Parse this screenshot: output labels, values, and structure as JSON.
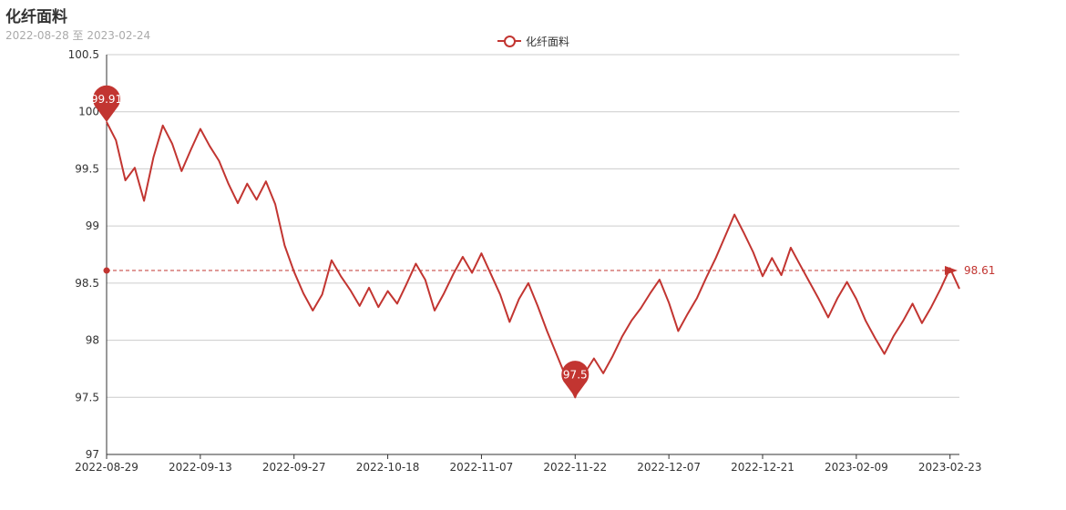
{
  "header": {
    "title": "化纤面料",
    "subtitle": "2022-08-28 至 2023-02-24"
  },
  "colors": {
    "series": "#c23531",
    "grid": "#cccccc",
    "axis": "#333333",
    "subtitle": "#aaaaaa"
  },
  "chart_data": {
    "type": "line",
    "title": "化纤面料",
    "subtitle": "2022-08-28 至 2023-02-24",
    "legend": {
      "position": "top-center",
      "items": [
        "化纤面料"
      ]
    },
    "ylim": [
      97,
      100.5
    ],
    "y_ticks": [
      97,
      97.5,
      98,
      98.5,
      99,
      99.5,
      100,
      100.5
    ],
    "y_tick_labels": [
      "97",
      "97.5",
      "98",
      "98.5",
      "99",
      "99.5",
      "100",
      "100.5"
    ],
    "x_tick_labels": [
      "2022-08-29",
      "2022-09-13",
      "2022-09-27",
      "2022-10-18",
      "2022-11-07",
      "2022-11-22",
      "2022-12-07",
      "2022-12-21",
      "2023-02-09",
      "2023-02-23"
    ],
    "x_tick_index": [
      0,
      10,
      20,
      30,
      40,
      50,
      60,
      70,
      80,
      90
    ],
    "grid": true,
    "series": [
      {
        "name": "化纤面料",
        "values": [
          99.91,
          99.75,
          99.4,
          99.51,
          99.22,
          99.6,
          99.88,
          99.72,
          99.48,
          99.67,
          99.85,
          99.7,
          99.57,
          99.37,
          99.2,
          99.37,
          99.23,
          99.39,
          99.19,
          98.83,
          98.6,
          98.41,
          98.26,
          98.4,
          98.7,
          98.56,
          98.44,
          98.3,
          98.46,
          98.29,
          98.43,
          98.32,
          98.49,
          98.67,
          98.53,
          98.26,
          98.41,
          98.58,
          98.73,
          98.59,
          98.76,
          98.58,
          98.4,
          98.16,
          98.36,
          98.5,
          98.3,
          98.08,
          97.88,
          97.68,
          97.5,
          97.71,
          97.84,
          97.71,
          97.86,
          98.03,
          98.17,
          98.28,
          98.41,
          98.53,
          98.33,
          98.08,
          98.23,
          98.37,
          98.55,
          98.72,
          98.91,
          99.1,
          98.94,
          98.77,
          98.56,
          98.72,
          98.57,
          98.81,
          98.66,
          98.51,
          98.36,
          98.2,
          98.37,
          98.51,
          98.36,
          98.17,
          98.02,
          97.88,
          98.04,
          98.17,
          98.32,
          98.15,
          98.29,
          98.45,
          98.63,
          98.45
        ]
      }
    ],
    "mark_points": [
      {
        "type": "max",
        "label": "99.91",
        "value": 99.91,
        "index": 0
      },
      {
        "type": "min",
        "label": "97.5",
        "value": 97.5,
        "index": 50
      }
    ],
    "mark_line": {
      "type": "average",
      "value": 98.61,
      "label": "98.61"
    }
  }
}
